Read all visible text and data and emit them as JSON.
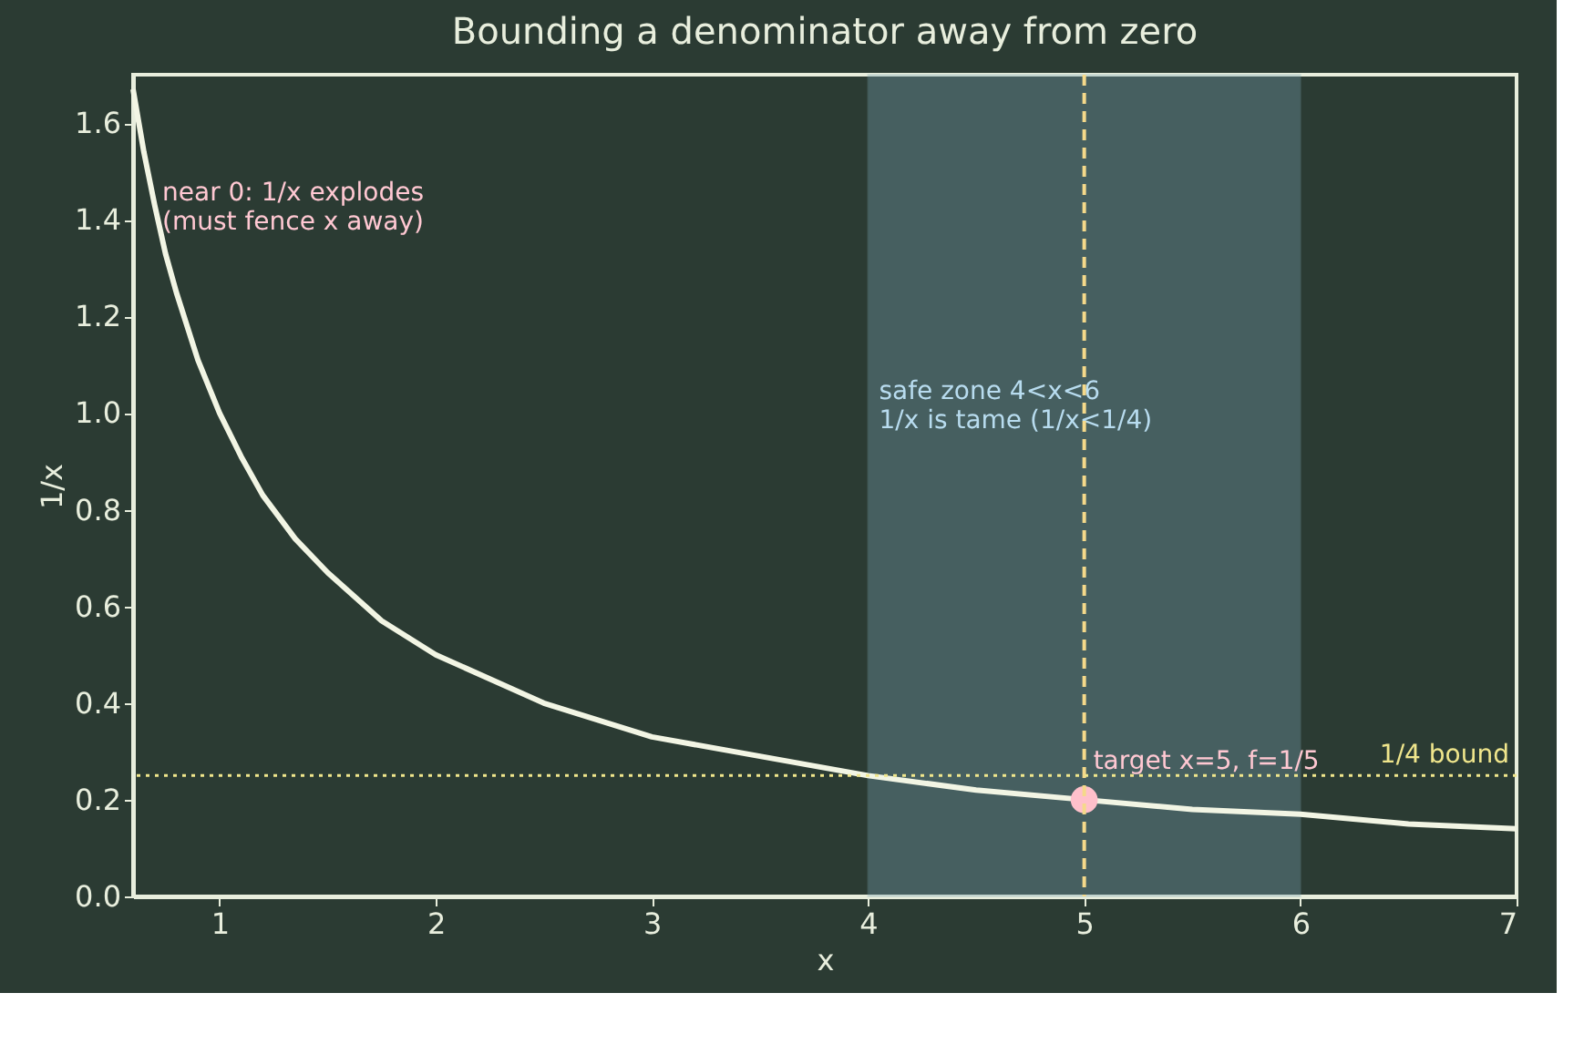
{
  "chart_data": {
    "type": "line",
    "title": "Bounding a denominator away from zero",
    "xlabel": "x",
    "ylabel": "1/x",
    "xlim": [
      0.6,
      7
    ],
    "ylim": [
      0,
      1.7
    ],
    "xticks": [
      1,
      2,
      3,
      4,
      5,
      6,
      7
    ],
    "yticks": [
      {
        "value": 0,
        "label": "0.0"
      },
      0.2,
      0.4,
      0.6,
      0.8,
      {
        "value": 1,
        "label": "1.0"
      },
      1.2,
      1.4,
      1.6
    ],
    "grid": false,
    "marker": "none",
    "line_style": "solid",
    "series": [
      {
        "color": "#f2f5e4",
        "x": [
          0.6,
          0.65,
          0.7,
          0.75,
          0.8,
          0.9,
          1.0,
          1.1,
          1.2,
          1.35,
          1.5,
          1.75,
          2,
          2.5,
          3,
          3.5,
          4,
          4.5,
          5,
          5.5,
          6,
          6.5,
          7
        ],
        "values": [
          1.67,
          1.54,
          1.43,
          1.33,
          1.25,
          1.11,
          1.0,
          0.91,
          0.83,
          0.74,
          0.67,
          0.57,
          0.5,
          0.4,
          0.33,
          0.29,
          0.25,
          0.22,
          0.2,
          0.18,
          0.17,
          0.15,
          0.14
        ]
      },
      {
        "type": "scatter",
        "color": "#ffc0cb",
        "x": [
          5
        ],
        "values": [
          0.2
        ],
        "marker": "circle"
      }
    ],
    "ref_lines": [
      {
        "axis": "x",
        "value": 5,
        "label": null,
        "color": "#f5d98a",
        "line_style": "dashed"
      },
      {
        "axis": "y",
        "value": 0.25,
        "label": "1/4 bound",
        "color": "#f0e68c",
        "line_style": "dotted"
      }
    ],
    "bands": [
      {
        "axis": "x",
        "from": 4,
        "to": 6,
        "label": "safe zone 4<x<6\n1/x is tame (1/x<1/4)",
        "color": "#7aa3b3"
      }
    ],
    "annotations": [
      "near 0: 1/x explodes\n(must fence x away)",
      {
        "text": "target x=5, f=1/5",
        "x": 5,
        "y": 0.2
      }
    ]
  }
}
